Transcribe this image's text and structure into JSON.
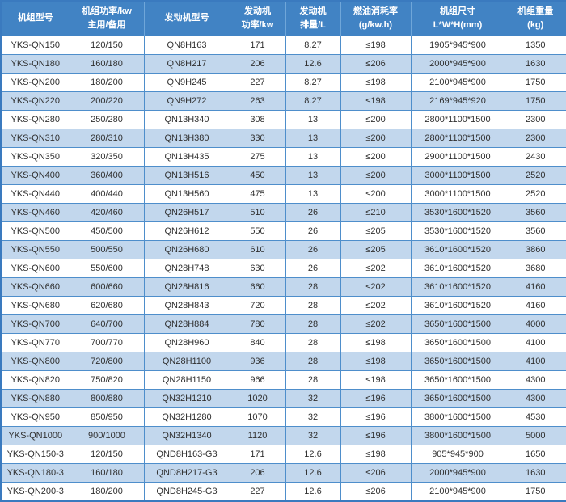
{
  "chart_data": {
    "type": "table",
    "title": "",
    "columns": [
      {
        "key": "unit_model",
        "line1": "机组型号",
        "line2": ""
      },
      {
        "key": "unit_power",
        "line1": "机组功率/kw",
        "line2": "主用/备用"
      },
      {
        "key": "engine_model",
        "line1": "发动机型号",
        "line2": ""
      },
      {
        "key": "engine_power",
        "line1": "发动机",
        "line2": "功率/kw"
      },
      {
        "key": "displacement",
        "line1": "发动机",
        "line2": "排量/L"
      },
      {
        "key": "fuel_consumption",
        "line1": "燃油消耗率",
        "line2": "(g/kw.h)"
      },
      {
        "key": "dimensions",
        "line1": "机组尺寸",
        "line2": "L*W*H(mm)"
      },
      {
        "key": "weight",
        "line1": "机组重量",
        "line2": "(kg)"
      }
    ],
    "rows": [
      [
        "YKS-QN150",
        "120/150",
        "QN8H163",
        "171",
        "8.27",
        "≤198",
        "1905*945*900",
        "1350"
      ],
      [
        "YKS-QN180",
        "160/180",
        "QN8H217",
        "206",
        "12.6",
        "≤206",
        "2000*945*900",
        "1630"
      ],
      [
        "YKS-QN200",
        "180/200",
        "QN9H245",
        "227",
        "8.27",
        "≤198",
        "2100*945*900",
        "1750"
      ],
      [
        "YKS-QN220",
        "200/220",
        "QN9H272",
        "263",
        "8.27",
        "≤198",
        "2169*945*920",
        "1750"
      ],
      [
        "YKS-QN280",
        "250/280",
        "QN13H340",
        "308",
        "13",
        "≤200",
        "2800*1100*1500",
        "2300"
      ],
      [
        "YKS-QN310",
        "280/310",
        "QN13H380",
        "330",
        "13",
        "≤200",
        "2800*1100*1500",
        "2300"
      ],
      [
        "YKS-QN350",
        "320/350",
        "QN13H435",
        "275",
        "13",
        "≤200",
        "2900*1100*1500",
        "2430"
      ],
      [
        "YKS-QN400",
        "360/400",
        "QN13H516",
        "450",
        "13",
        "≤200",
        "3000*1100*1500",
        "2520"
      ],
      [
        "YKS-QN440",
        "400/440",
        "QN13H560",
        "475",
        "13",
        "≤200",
        "3000*1100*1500",
        "2520"
      ],
      [
        "YKS-QN460",
        "420/460",
        "QN26H517",
        "510",
        "26",
        "≤210",
        "3530*1600*1520",
        "3560"
      ],
      [
        "YKS-QN500",
        "450/500",
        "QN26H612",
        "550",
        "26",
        "≤205",
        "3530*1600*1520",
        "3560"
      ],
      [
        "YKS-QN550",
        "500/550",
        "QN26H680",
        "610",
        "26",
        "≤205",
        "3610*1600*1520",
        "3860"
      ],
      [
        "YKS-QN600",
        "550/600",
        "QN28H748",
        "630",
        "26",
        "≤202",
        "3610*1600*1520",
        "3680"
      ],
      [
        "YKS-QN660",
        "600/660",
        "QN28H816",
        "660",
        "28",
        "≤202",
        "3610*1600*1520",
        "4160"
      ],
      [
        "YKS-QN680",
        "620/680",
        "QN28H843",
        "720",
        "28",
        "≤202",
        "3610*1600*1520",
        "4160"
      ],
      [
        "YKS-QN700",
        "640/700",
        "QN28H884",
        "780",
        "28",
        "≤202",
        "3650*1600*1500",
        "4000"
      ],
      [
        "YKS-QN770",
        "700/770",
        "QN28H960",
        "840",
        "28",
        "≤198",
        "3650*1600*1500",
        "4100"
      ],
      [
        "YKS-QN800",
        "720/800",
        "QN28H1100",
        "936",
        "28",
        "≤198",
        "3650*1600*1500",
        "4100"
      ],
      [
        "YKS-QN820",
        "750/820",
        "QN28H1150",
        "966",
        "28",
        "≤198",
        "3650*1600*1500",
        "4300"
      ],
      [
        "YKS-QN880",
        "800/880",
        "QN32H1210",
        "1020",
        "32",
        "≤196",
        "3650*1600*1500",
        "4300"
      ],
      [
        "YKS-QN950",
        "850/950",
        "QN32H1280",
        "1070",
        "32",
        "≤196",
        "3800*1600*1500",
        "4530"
      ],
      [
        "YKS-QN1000",
        "900/1000",
        "QN32H1340",
        "1120",
        "32",
        "≤196",
        "3800*1600*1500",
        "5000"
      ],
      [
        "YKS-QN150-3",
        "120/150",
        "QND8H163-G3",
        "171",
        "12.6",
        "≤198",
        "905*945*900",
        "1650"
      ],
      [
        "YKS-QN180-3",
        "160/180",
        "QND8H217-G3",
        "206",
        "12.6",
        "≤206",
        "2000*945*900",
        "1630"
      ],
      [
        "YKS-QN200-3",
        "180/200",
        "QND8H245-G3",
        "227",
        "12.6",
        "≤206",
        "2100*945*900",
        "1750"
      ]
    ],
    "layout": {
      "header_rows": 1,
      "data_rows": 25,
      "striping": "even rows light blue",
      "grid": "on"
    }
  },
  "colors": {
    "header_bg": "#4183c4",
    "header_text": "#ffffff",
    "row_bg": "#ffffff",
    "row_alt_bg": "#c2d7ed",
    "grid_line": "#4e8ecb",
    "outer_border": "#3a7abf",
    "text": "#303030"
  }
}
